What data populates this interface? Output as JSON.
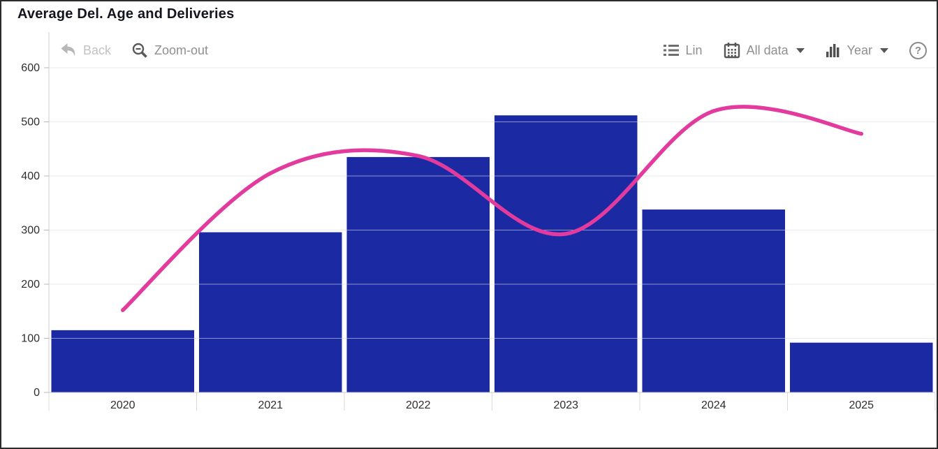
{
  "title": "Average Del. Age and Deliveries",
  "toolbar": {
    "back_label": "Back",
    "zoom_out_label": "Zoom-out",
    "scale_label": "Lin",
    "range_label": "All data",
    "granularity_label": "Year",
    "help_label": "?"
  },
  "chart_data": {
    "type": "bar",
    "title": "Average Del. Age and Deliveries",
    "categories": [
      "2020",
      "2021",
      "2022",
      "2023",
      "2024",
      "2025"
    ],
    "series": [
      {
        "name": "Deliveries",
        "type": "bar",
        "color": "#1b2aa3",
        "values": [
          115,
          296,
          435,
          512,
          338,
          92
        ]
      },
      {
        "name": "Average Del. Age",
        "type": "line",
        "color": "#e23a9d",
        "values": [
          152,
          405,
          437,
          293,
          520,
          478
        ]
      }
    ],
    "ylim": [
      0,
      600
    ],
    "ytick_step": 100,
    "yticks": [
      0,
      100,
      200,
      300,
      400,
      500,
      600
    ],
    "grid": true,
    "legend": "none"
  }
}
